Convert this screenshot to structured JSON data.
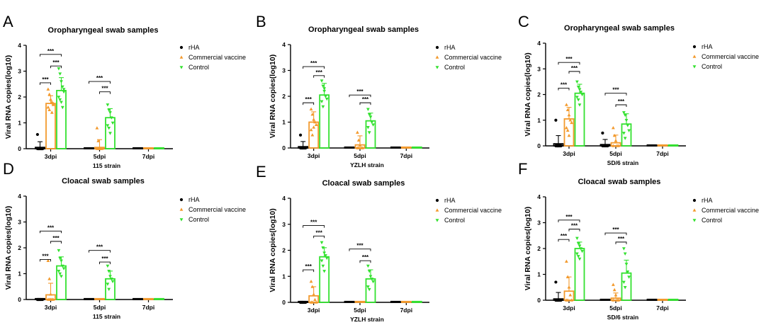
{
  "figure": {
    "legend": [
      "rHA",
      "Commercial vaccine",
      "Control"
    ],
    "colors": {
      "rHA": "#000000",
      "Commercial vaccine": "#f39a2d",
      "Control": "#33e12f"
    },
    "significance_label": "***"
  },
  "chart_data": [
    {
      "panel": "A",
      "type": "bar",
      "title": "Oropharyngeal swab samples",
      "xlabel": "115 strain",
      "ylabel": "Viral RNA copies(log10)",
      "ylim": [
        0,
        4
      ],
      "yticks": [
        "0",
        "1",
        "2",
        "3",
        "4"
      ],
      "categories": [
        "3dpi",
        "5dpi",
        "7dpi"
      ],
      "series": [
        {
          "name": "rHA",
          "values": [
            0.05,
            0.0,
            0.0
          ],
          "err": [
            0.22,
            0.0,
            0.0
          ]
        },
        {
          "name": "Commercial vaccine",
          "values": [
            1.75,
            0.05,
            0.0
          ],
          "err": [
            0.3,
            0.3,
            0.0
          ]
        },
        {
          "name": "Control",
          "values": [
            2.25,
            1.2,
            0.0
          ],
          "err": [
            0.5,
            0.35,
            0.0
          ]
        }
      ],
      "points": [
        [
          [
            0.55,
            0,
            0,
            0,
            0,
            0,
            0,
            0,
            0,
            0
          ],
          [],
          []
        ],
        [
          [
            2.3,
            2.1,
            1.9,
            1.8,
            1.7,
            1.6,
            1.5,
            1.9,
            1.4,
            1.75
          ],
          [
            0.8,
            0.3,
            0,
            0,
            0,
            0,
            0,
            0
          ],
          []
        ],
        [
          [
            3.1,
            2.9,
            2.6,
            2.4,
            2.2,
            2.0,
            1.9,
            1.8,
            1.6,
            2.3
          ],
          [
            1.7,
            1.5,
            1.4,
            1.2,
            1.0,
            0.9,
            0.8,
            0.6
          ],
          []
        ]
      ],
      "significance": [
        {
          "group": 0,
          "from": 0,
          "to": 1,
          "y": 2.55,
          "label": "***"
        },
        {
          "group": 0,
          "from": 1,
          "to": 2,
          "y": 3.2,
          "label": "***"
        },
        {
          "group": 0,
          "from": 0,
          "to": 2,
          "y": 3.65,
          "label": "***"
        },
        {
          "group": 1,
          "from": 1,
          "to": 2,
          "y": 2.2,
          "label": "***"
        },
        {
          "group": 1,
          "from": 0,
          "to": 2,
          "y": 2.6,
          "label": "***"
        }
      ]
    },
    {
      "panel": "B",
      "type": "bar",
      "title": "Oropharyngeal swab samples",
      "xlabel": "YZLH strain",
      "ylabel": "Viral RNA copies(log10)",
      "ylim": [
        0,
        4
      ],
      "yticks": [
        "0",
        "1",
        "2",
        "3",
        "4"
      ],
      "categories": [
        "3dpi",
        "5dpi",
        "7dpi"
      ],
      "series": [
        {
          "name": "rHA",
          "values": [
            0.05,
            0.0,
            0.0
          ],
          "err": [
            0.2,
            0.0,
            0.0
          ]
        },
        {
          "name": "Commercial vaccine",
          "values": [
            1.0,
            0.12,
            0.0
          ],
          "err": [
            0.4,
            0.35,
            0.0
          ]
        },
        {
          "name": "Control",
          "values": [
            2.05,
            1.05,
            0.0
          ],
          "err": [
            0.45,
            0.3,
            0.0
          ]
        }
      ],
      "points": [
        [
          [
            0.5,
            0,
            0,
            0,
            0,
            0,
            0,
            0
          ],
          [],
          []
        ],
        [
          [
            1.5,
            1.3,
            1.1,
            1.0,
            0.9,
            0.7,
            0.5,
            0.8
          ],
          [
            0.6,
            0.3,
            0.1,
            0,
            0,
            0,
            0
          ],
          []
        ],
        [
          [
            2.6,
            2.4,
            2.2,
            2.0,
            1.9,
            1.8,
            1.6,
            2.3
          ],
          [
            1.5,
            1.3,
            1.2,
            1.0,
            0.9,
            0.8,
            0.6
          ],
          []
        ]
      ],
      "significance": [
        {
          "group": 0,
          "from": 0,
          "to": 1,
          "y": 1.75,
          "label": "***"
        },
        {
          "group": 0,
          "from": 1,
          "to": 2,
          "y": 2.8,
          "label": "***"
        },
        {
          "group": 0,
          "from": 0,
          "to": 2,
          "y": 3.15,
          "label": "***"
        },
        {
          "group": 1,
          "from": 1,
          "to": 2,
          "y": 1.75,
          "label": "***"
        },
        {
          "group": 1,
          "from": 0,
          "to": 2,
          "y": 2.05,
          "label": "***"
        }
      ]
    },
    {
      "panel": "C",
      "type": "bar",
      "title": "Oropharyngeal swab samples",
      "xlabel": "SD/6 strain",
      "ylabel": "Viral RNA copies(log10)",
      "ylim": [
        0,
        4
      ],
      "yticks": [
        "0",
        "1",
        "2",
        "3",
        "4"
      ],
      "categories": [
        "3dpi",
        "5dpi",
        "7dpi"
      ],
      "series": [
        {
          "name": "rHA",
          "values": [
            0.08,
            0.05,
            0.0
          ],
          "err": [
            0.32,
            0.2,
            0.0
          ]
        },
        {
          "name": "Commercial vaccine",
          "values": [
            1.05,
            0.12,
            0.0
          ],
          "err": [
            0.45,
            0.3,
            0.0
          ]
        },
        {
          "name": "Control",
          "values": [
            2.05,
            0.85,
            0.0
          ],
          "err": [
            0.35,
            0.4,
            0.0
          ]
        }
      ],
      "points": [
        [
          [
            1.0,
            0,
            0,
            0,
            0,
            0,
            0,
            0
          ],
          [
            0.5,
            0,
            0,
            0,
            0,
            0
          ],
          []
        ],
        [
          [
            1.6,
            1.4,
            1.2,
            1.0,
            0.9,
            0.7,
            0.6,
            0.4
          ],
          [
            0.7,
            0.4,
            0.2,
            0,
            0,
            0
          ],
          []
        ],
        [
          [
            2.5,
            2.3,
            2.2,
            2.1,
            2.0,
            1.9,
            1.8,
            1.6
          ],
          [
            1.3,
            1.2,
            1.0,
            0.8,
            0.6,
            0.5,
            0.3
          ],
          []
        ]
      ],
      "significance": [
        {
          "group": 0,
          "from": 0,
          "to": 1,
          "y": 2.25,
          "label": "***"
        },
        {
          "group": 0,
          "from": 1,
          "to": 2,
          "y": 2.9,
          "label": "***"
        },
        {
          "group": 0,
          "from": 0,
          "to": 2,
          "y": 3.25,
          "label": "***"
        },
        {
          "group": 1,
          "from": 1,
          "to": 2,
          "y": 1.6,
          "label": "***"
        },
        {
          "group": 1,
          "from": 0,
          "to": 2,
          "y": 2.05,
          "label": "***"
        }
      ]
    },
    {
      "panel": "D",
      "type": "bar",
      "title": "Cloacal swab samples",
      "xlabel": "115 strain",
      "ylabel": "Viral RNA copies(log10)",
      "ylim": [
        0,
        4
      ],
      "yticks": [
        "0",
        "1",
        "2",
        "3",
        "4"
      ],
      "categories": [
        "3dpi",
        "5dpi",
        "7dpi"
      ],
      "series": [
        {
          "name": "rHA",
          "values": [
            0.0,
            0.0,
            0.0
          ],
          "err": [
            0.0,
            0.0,
            0.0
          ]
        },
        {
          "name": "Commercial vaccine",
          "values": [
            0.18,
            0.0,
            0.0
          ],
          "err": [
            0.45,
            0.0,
            0.0
          ]
        },
        {
          "name": "Control",
          "values": [
            1.3,
            0.8,
            0.0
          ],
          "err": [
            0.35,
            0.3,
            0.0
          ]
        }
      ],
      "points": [
        [
          [
            0,
            0,
            0,
            0,
            0,
            0,
            0,
            0
          ],
          [],
          []
        ],
        [
          [
            1.5,
            0.8,
            0.2,
            0,
            0,
            0,
            0,
            0
          ],
          [],
          []
        ],
        [
          [
            1.9,
            1.6,
            1.5,
            1.3,
            1.2,
            1.1,
            1.0,
            0.9
          ],
          [
            1.3,
            1.1,
            0.9,
            0.8,
            0.7,
            0.6,
            0.4
          ],
          []
        ]
      ],
      "significance": [
        {
          "group": 0,
          "from": 0,
          "to": 1,
          "y": 1.55,
          "label": "***"
        },
        {
          "group": 0,
          "from": 1,
          "to": 2,
          "y": 2.25,
          "label": "***"
        },
        {
          "group": 0,
          "from": 0,
          "to": 2,
          "y": 2.65,
          "label": "***"
        },
        {
          "group": 1,
          "from": 1,
          "to": 2,
          "y": 1.45,
          "label": "***"
        },
        {
          "group": 1,
          "from": 0,
          "to": 2,
          "y": 1.9,
          "label": "***"
        }
      ]
    },
    {
      "panel": "E",
      "type": "bar",
      "title": "Cloacal swab samples",
      "xlabel": "YZLH strain",
      "ylabel": "Viral RNA copies(log10)",
      "ylim": [
        0,
        4
      ],
      "yticks": [
        "0",
        "1",
        "2",
        "3",
        "4"
      ],
      "categories": [
        "3dpi",
        "5dpi",
        "7dpi"
      ],
      "series": [
        {
          "name": "rHA",
          "values": [
            0.0,
            0.0,
            0.0
          ],
          "err": [
            0.0,
            0.0,
            0.0
          ]
        },
        {
          "name": "Commercial vaccine",
          "values": [
            0.25,
            0.0,
            0.0
          ],
          "err": [
            0.35,
            0.0,
            0.0
          ]
        },
        {
          "name": "Control",
          "values": [
            1.75,
            0.9,
            0.0
          ],
          "err": [
            0.35,
            0.35,
            0.0
          ]
        }
      ],
      "points": [
        [
          [
            0,
            0,
            0,
            0,
            0,
            0,
            0,
            0
          ],
          [],
          []
        ],
        [
          [
            0.8,
            0.6,
            0.3,
            0.1,
            0,
            0,
            0
          ],
          [],
          []
        ],
        [
          [
            2.3,
            2.1,
            1.9,
            1.8,
            1.7,
            1.6,
            1.4,
            1.2
          ],
          [
            1.4,
            1.2,
            1.0,
            0.9,
            0.8,
            0.6,
            0.5
          ],
          []
        ]
      ],
      "significance": [
        {
          "group": 0,
          "from": 0,
          "to": 1,
          "y": 1.25,
          "label": "***"
        },
        {
          "group": 0,
          "from": 1,
          "to": 2,
          "y": 2.55,
          "label": "***"
        },
        {
          "group": 0,
          "from": 0,
          "to": 2,
          "y": 2.95,
          "label": "***"
        },
        {
          "group": 1,
          "from": 1,
          "to": 2,
          "y": 1.6,
          "label": "***"
        },
        {
          "group": 1,
          "from": 0,
          "to": 2,
          "y": 2.05,
          "label": "***"
        }
      ]
    },
    {
      "panel": "F",
      "type": "bar",
      "title": "Cloacal swab samples",
      "xlabel": "SD/6 strain",
      "ylabel": "Viral RNA copies(log10)",
      "ylim": [
        0,
        4
      ],
      "yticks": [
        "0",
        "1",
        "2",
        "3",
        "4"
      ],
      "categories": [
        "3dpi",
        "5dpi",
        "7dpi"
      ],
      "series": [
        {
          "name": "rHA",
          "values": [
            0.05,
            0.0,
            0.0
          ],
          "err": [
            0.25,
            0.0,
            0.0
          ]
        },
        {
          "name": "Commercial vaccine",
          "values": [
            0.35,
            0.08,
            0.0
          ],
          "err": [
            0.55,
            0.2,
            0.0
          ]
        },
        {
          "name": "Control",
          "values": [
            2.0,
            1.05,
            0.0
          ],
          "err": [
            0.25,
            0.5,
            0.0
          ]
        }
      ],
      "points": [
        [
          [
            0.7,
            0,
            0,
            0,
            0,
            0,
            0,
            0
          ],
          [],
          []
        ],
        [
          [
            1.5,
            0.9,
            0.5,
            0.2,
            0,
            0,
            0
          ],
          [
            0.6,
            0.4,
            0.2,
            0,
            0,
            0
          ],
          []
        ],
        [
          [
            2.4,
            2.2,
            2.1,
            2.0,
            1.9,
            1.8,
            1.7,
            1.6
          ],
          [
            2.0,
            1.8,
            1.4,
            1.1,
            0.9,
            0.7,
            0.5
          ],
          []
        ]
      ],
      "significance": [
        {
          "group": 0,
          "from": 0,
          "to": 1,
          "y": 2.35,
          "label": "***"
        },
        {
          "group": 0,
          "from": 1,
          "to": 2,
          "y": 2.75,
          "label": "***"
        },
        {
          "group": 0,
          "from": 0,
          "to": 2,
          "y": 3.1,
          "label": "***"
        },
        {
          "group": 1,
          "from": 1,
          "to": 2,
          "y": 2.25,
          "label": "***"
        },
        {
          "group": 1,
          "from": 0,
          "to": 2,
          "y": 2.6,
          "label": "***"
        }
      ]
    }
  ]
}
